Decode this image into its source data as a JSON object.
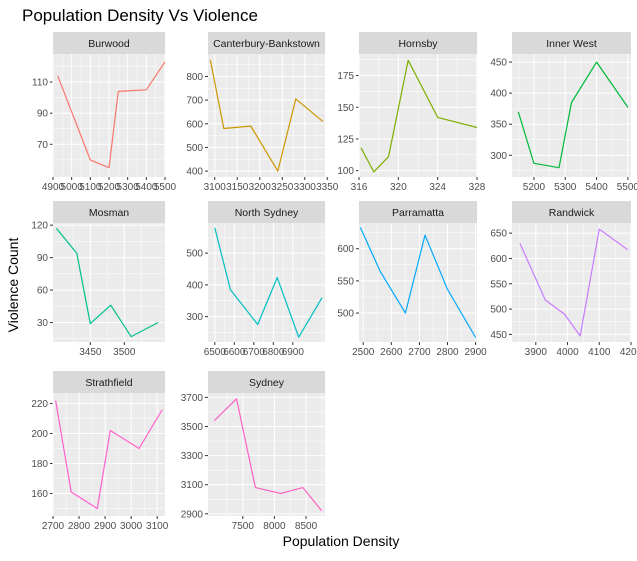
{
  "chart_data": {
    "type": "line",
    "title": "Population Density Vs Violence",
    "xlabel": "Population Density",
    "ylabel": "Violence Count",
    "grid": true,
    "legend": "none",
    "facets": [
      {
        "name": "Burwood",
        "color": "#F8766D",
        "x": [
          4925,
          5100,
          5200,
          5250,
          5400,
          5500
        ],
        "y": [
          114,
          60,
          55,
          104,
          105,
          123
        ],
        "xlim": [
          4900,
          5500
        ],
        "ylim": [
          49,
          128
        ],
        "xticks": [
          4900,
          5000,
          5100,
          5200,
          5300,
          5400,
          5500
        ],
        "xticklabels": [
          "4900",
          "5000",
          "5100",
          "5200",
          "5300",
          "5400",
          "5500"
        ],
        "yticks": [
          70,
          90,
          110
        ],
        "yticklabels": [
          "70",
          "90",
          "110"
        ]
      },
      {
        "name": "Canterbury-Bankstown",
        "color": "#CD9600",
        "x": [
          3090,
          3120,
          3180,
          3240,
          3280,
          3340
        ],
        "y": [
          870,
          580,
          590,
          400,
          705,
          610
        ],
        "xlim": [
          3085,
          3345
        ],
        "ylim": [
          375,
          895
        ],
        "xticks": [
          3100,
          3150,
          3200,
          3250,
          3300,
          3350
        ],
        "xticklabels": [
          "3100",
          "3150",
          "3200",
          "3250",
          "3300",
          "3350"
        ],
        "yticks": [
          400,
          500,
          600,
          700,
          800
        ],
        "yticklabels": [
          "400",
          "500",
          "600",
          "700",
          "800"
        ]
      },
      {
        "name": "Hornsby",
        "color": "#7CAE00",
        "x": [
          316.2,
          317.5,
          319,
          321,
          324,
          328
        ],
        "y": [
          118,
          99,
          111,
          187,
          142,
          134
        ],
        "xlim": [
          316,
          328
        ],
        "ylim": [
          95,
          192
        ],
        "xticks": [
          316,
          320,
          324,
          328
        ],
        "xticklabels": [
          "316",
          "320",
          "324",
          "328"
        ],
        "yticks": [
          100,
          125,
          150,
          175
        ],
        "yticklabels": [
          "100",
          "125",
          "150",
          "175"
        ]
      },
      {
        "name": "Inner West",
        "color": "#00BA38",
        "x": [
          5150,
          5200,
          5280,
          5320,
          5400,
          5500
        ],
        "y": [
          370,
          287,
          280,
          385,
          450,
          377
        ],
        "xlim": [
          5130,
          5510
        ],
        "ylim": [
          265,
          463
        ],
        "xticks": [
          5200,
          5300,
          5400,
          5500
        ],
        "xticklabels": [
          "5200",
          "5300",
          "5400",
          "5500"
        ],
        "yticks": [
          300,
          350,
          400,
          450
        ],
        "yticklabels": [
          "300",
          "350",
          "400",
          "450"
        ]
      },
      {
        "name": "Mosman",
        "color": "#00C08B",
        "x": [
          3400,
          3430,
          3450,
          3480,
          3510,
          3550
        ],
        "y": [
          117,
          94,
          29,
          46,
          17,
          30
        ],
        "xlim": [
          3395,
          3560
        ],
        "ylim": [
          12,
          122
        ],
        "xticks": [
          3450,
          3500
        ],
        "xticklabels": [
          "3450",
          "3500"
        ],
        "yticks": [
          30,
          60,
          90,
          120
        ],
        "yticklabels": [
          "30",
          "60",
          "90",
          "120"
        ]
      },
      {
        "name": "North Sydney",
        "color": "#00BFC4",
        "x": [
          6500,
          6580,
          6720,
          6820,
          6930,
          7050
        ],
        "y": [
          580,
          385,
          275,
          423,
          235,
          360
        ],
        "xlim": [
          6465,
          7065
        ],
        "ylim": [
          220,
          595
        ],
        "xticks": [
          6500,
          6600,
          6700,
          6800,
          6900
        ],
        "xticklabels": [
          "6500",
          "6600",
          "6700",
          "6800",
          "6900"
        ],
        "yticks": [
          300,
          400,
          500
        ],
        "yticklabels": [
          "300",
          "400",
          "500"
        ]
      },
      {
        "name": "Parramatta",
        "color": "#00A9FF",
        "x": [
          2490,
          2560,
          2650,
          2720,
          2800,
          2900
        ],
        "y": [
          633,
          565,
          500,
          621,
          537,
          462
        ],
        "xlim": [
          2485,
          2905
        ],
        "ylim": [
          455,
          640
        ],
        "xticks": [
          2500,
          2600,
          2700,
          2800,
          2900
        ],
        "xticklabels": [
          "2500",
          "2600",
          "2700",
          "2800",
          "2900"
        ],
        "yticks": [
          500,
          550,
          600
        ],
        "yticklabels": [
          "500",
          "550",
          "600"
        ]
      },
      {
        "name": "Randwick",
        "color": "#C77CFF",
        "x": [
          3850,
          3930,
          3990,
          4040,
          4100,
          4190
        ],
        "y": [
          630,
          518,
          490,
          447,
          658,
          617
        ],
        "xlim": [
          3825,
          4200
        ],
        "ylim": [
          435,
          670
        ],
        "xticks": [
          3900,
          4000,
          4100,
          4200
        ],
        "xticklabels": [
          "3900",
          "4000",
          "4100",
          "4200"
        ],
        "yticks": [
          450,
          500,
          550,
          600,
          650
        ],
        "yticklabels": [
          "450",
          "500",
          "550",
          "600",
          "650"
        ]
      },
      {
        "name": "Strathfield",
        "color": "#FF61CC",
        "x": [
          2710,
          2770,
          2870,
          2920,
          3030,
          3120
        ],
        "y": [
          222,
          161,
          150,
          202,
          190,
          216
        ],
        "xlim": [
          2700,
          3130
        ],
        "ylim": [
          145,
          227
        ],
        "xticks": [
          2700,
          2800,
          2900,
          3000,
          3100
        ],
        "xticklabels": [
          "2700",
          "2800",
          "2900",
          "3000",
          "3100"
        ],
        "yticks": [
          160,
          180,
          200,
          220
        ],
        "yticklabels": [
          "160",
          "180",
          "200",
          "220"
        ]
      },
      {
        "name": "Sydney",
        "color": "#FF61C3",
        "x": [
          7050,
          7400,
          7700,
          8100,
          8450,
          8750
        ],
        "y": [
          3540,
          3690,
          3080,
          3040,
          3080,
          2920
        ],
        "xlim": [
          6950,
          8800
        ],
        "ylim": [
          2885,
          3730
        ],
        "xticks": [
          7500,
          8000,
          8500
        ],
        "xticklabels": [
          "7500",
          "8000",
          "8500"
        ],
        "yticks": [
          2900,
          3100,
          3300,
          3500,
          3700
        ],
        "yticklabels": [
          "2900",
          "3100",
          "3300",
          "3500",
          "3700"
        ]
      }
    ]
  }
}
